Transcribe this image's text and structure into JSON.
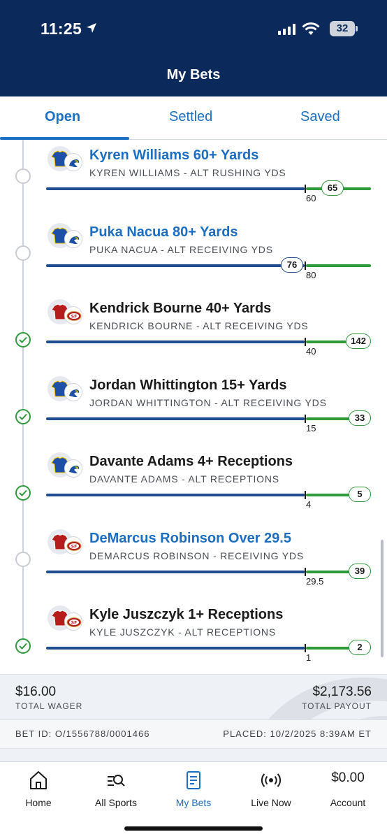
{
  "status_bar": {
    "time": "11:25",
    "battery": "32"
  },
  "header": {
    "title": "My Bets"
  },
  "tabs": [
    {
      "label": "Open",
      "active": true
    },
    {
      "label": "Settled",
      "active": false
    },
    {
      "label": "Saved",
      "active": false
    }
  ],
  "legs": [
    {
      "title": "Kyren Williams 60+ Yards",
      "subtitle": "KYREN WILLIAMS - ALT RUSHING YDS",
      "target": "60",
      "current": "65",
      "status": "pending",
      "team": "rams"
    },
    {
      "title": "Puka Nacua 80+ Yards",
      "subtitle": "PUKA NACUA - ALT RECEIVING YDS",
      "target": "80",
      "current": "76",
      "status": "pending",
      "team": "rams"
    },
    {
      "title": "Kendrick Bourne 40+ Yards",
      "subtitle": "KENDRICK BOURNE - ALT RECEIVING YDS",
      "target": "40",
      "current": "142",
      "status": "won",
      "team": "49ers"
    },
    {
      "title": "Jordan Whittington 15+ Yards",
      "subtitle": "JORDAN WHITTINGTON - ALT RECEIVING YDS",
      "target": "15",
      "current": "33",
      "status": "won",
      "team": "rams"
    },
    {
      "title": "Davante Adams 4+ Receptions",
      "subtitle": "DAVANTE ADAMS - ALT RECEPTIONS",
      "target": "4",
      "current": "5",
      "status": "won",
      "team": "rams"
    },
    {
      "title": "DeMarcus Robinson Over 29.5",
      "subtitle": "DEMARCUS ROBINSON - RECEIVING YDS",
      "target": "29.5",
      "current": "39",
      "status": "pending",
      "team": "49ers"
    },
    {
      "title": "Kyle Juszczyk 1+ Receptions",
      "subtitle": "KYLE JUSZCZYK - ALT RECEPTIONS",
      "target": "1",
      "current": "2",
      "status": "won",
      "team": "49ers"
    }
  ],
  "summary": {
    "total_wager": "$16.00",
    "total_wager_label": "TOTAL WAGER",
    "total_payout": "$2,173.56",
    "total_payout_label": "TOTAL PAYOUT",
    "bet_id": "BET ID: O/1556788/0001466",
    "placed": "PLACED: 10/2/2025 8:39AM ET"
  },
  "bottom_nav": [
    {
      "label": "Home",
      "icon": "home-icon"
    },
    {
      "label": "All Sports",
      "icon": "search-sports-icon"
    },
    {
      "label": "My Bets",
      "icon": "betslip-icon",
      "active": true
    },
    {
      "label": "Live Now",
      "icon": "live-broadcast-icon"
    },
    {
      "label": "Account",
      "icon": "balance",
      "balance": "$0.00"
    }
  ],
  "colors": {
    "header_bg": "#0b2a5b",
    "accent": "#1c6fc2",
    "progress_blue": "#1f4b8f",
    "success_green": "#2f9a3b"
  }
}
